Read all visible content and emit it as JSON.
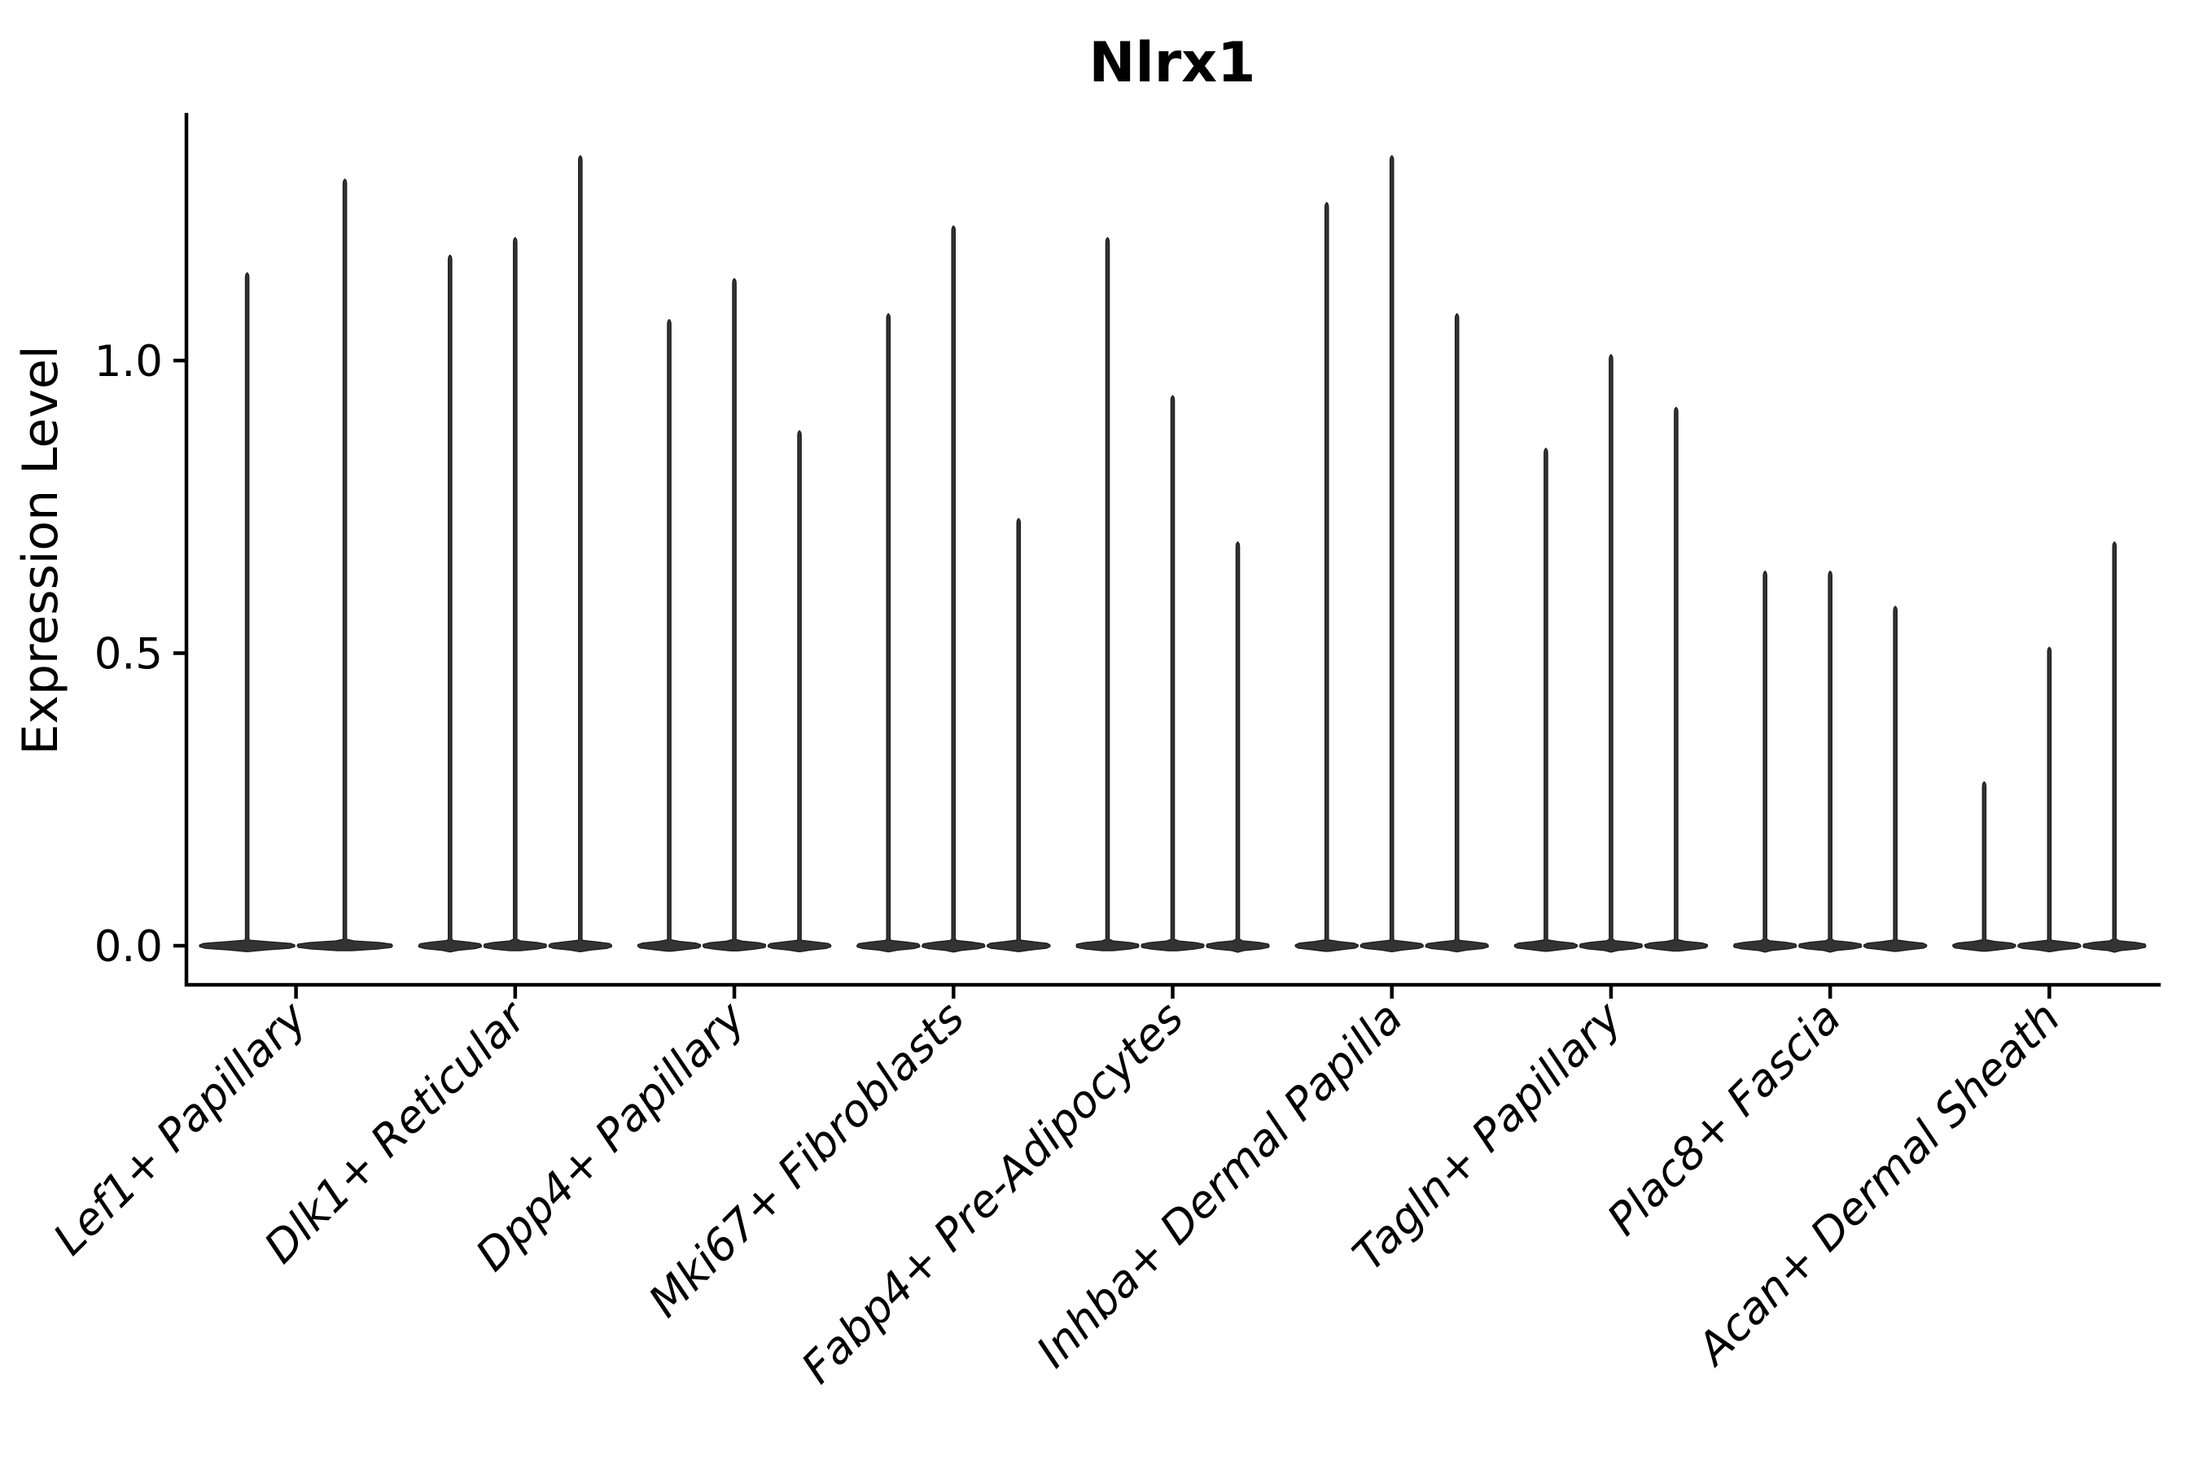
{
  "chart_data": {
    "type": "violin",
    "title": "Nlrx1",
    "ylabel": "Expression Level",
    "xlabel": "",
    "ylim": [
      -0.07,
      1.42
    ],
    "yticks": [
      {
        "value": 0.0,
        "label": "0.0"
      },
      {
        "value": 0.5,
        "label": "0.5"
      },
      {
        "value": 1.0,
        "label": "1.0"
      }
    ],
    "grid": false,
    "legend": "none",
    "categories": [
      "Lef1+ Papillary",
      "Dlk1+ Reticular",
      "Dpp4+ Papillary",
      "Mki67+ Fibroblasts",
      "Fabp4+ Pre-Adipocytes",
      "Inhba+ Dermal Papilla",
      "Tagln+ Papillary",
      "Plac8+ Fascia",
      "Acan+ Dermal Sheath"
    ],
    "series": [
      {
        "category": "Lef1+ Papillary",
        "violin_maxima": [
          1.15,
          1.31
        ]
      },
      {
        "category": "Dlk1+ Reticular",
        "violin_maxima": [
          1.18,
          1.21,
          1.35
        ]
      },
      {
        "category": "Dpp4+ Papillary",
        "violin_maxima": [
          1.07,
          1.14,
          0.88
        ]
      },
      {
        "category": "Mki67+ Fibroblasts",
        "violin_maxima": [
          1.08,
          1.23,
          0.73
        ]
      },
      {
        "category": "Fabp4+ Pre-Adipocytes",
        "violin_maxima": [
          1.21,
          0.94,
          0.69
        ]
      },
      {
        "category": "Inhba+ Dermal Papilla",
        "violin_maxima": [
          1.27,
          1.35,
          1.08
        ]
      },
      {
        "category": "Tagln+ Papillary",
        "violin_maxima": [
          0.85,
          1.01,
          0.92
        ]
      },
      {
        "category": "Plac8+ Fascia",
        "violin_maxima": [
          0.64,
          0.64,
          0.58
        ]
      },
      {
        "category": "Acan+ Dermal Sheath",
        "violin_maxima": [
          0.28,
          0.51,
          0.69
        ]
      }
    ],
    "violin_baseline_value": 0.0,
    "colors": {
      "violin_fill": "#333333",
      "violin_stroke": "#1f1f1f",
      "axis": "#000000",
      "text": "#000000",
      "background": "#ffffff"
    }
  }
}
